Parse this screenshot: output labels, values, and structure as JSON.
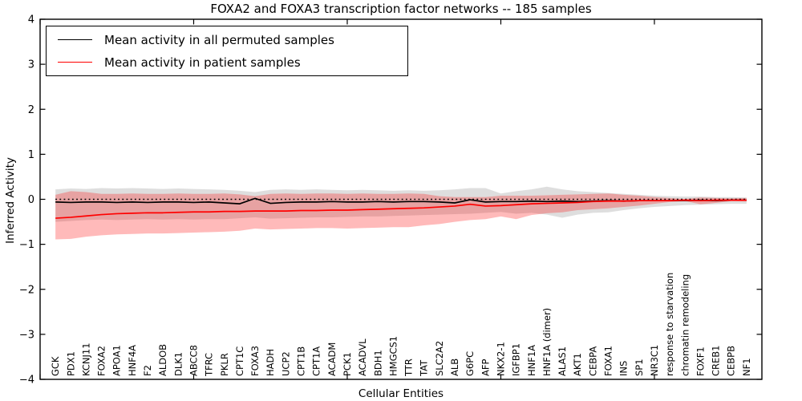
{
  "figure": {
    "title": "FOXA2 and FOXA3 transcription factor networks -- 185 samples",
    "xlabel": "Cellular Entities",
    "ylabel": "Inferred Activity"
  },
  "legend": {
    "items": [
      {
        "label": "Mean activity in all permuted samples",
        "color": "#000000"
      },
      {
        "label": "Mean activity in patient samples",
        "color": "#ff0000"
      }
    ]
  },
  "chart_data": {
    "type": "line",
    "title": "FOXA2 and FOXA3 transcription factor networks -- 185 samples",
    "xlabel": "Cellular Entities",
    "ylabel": "Inferred Activity",
    "ylim": [
      -4,
      4
    ],
    "grid": false,
    "legend_position": "upper left",
    "yticks": [
      {
        "value": 4,
        "label": "4"
      },
      {
        "value": 3,
        "label": "3"
      },
      {
        "value": 2,
        "label": "2"
      },
      {
        "value": 1,
        "label": "1"
      },
      {
        "value": 0,
        "label": "0"
      },
      {
        "value": -1,
        "label": "−1"
      },
      {
        "value": -2,
        "label": "−2"
      },
      {
        "value": -3,
        "label": "−3"
      },
      {
        "value": -4,
        "label": "−4"
      }
    ],
    "xtick_frame_positions": [
      0,
      10,
      20,
      30,
      40
    ],
    "categories": [
      "GCK",
      "PDX1",
      "KCNJ11",
      "FOXA2",
      "APOA1",
      "HNF4A",
      "F2",
      "ALDOB",
      "DLK1",
      "ABCC8",
      "TFRC",
      "PKLR",
      "CPT1C",
      "FOXA3",
      "HADH",
      "UCP2",
      "CPT1B",
      "CPT1A",
      "ACADM",
      "PCK1",
      "ACADVL",
      "BDH1",
      "HMGCS1",
      "TTR",
      "TAT",
      "SLC2A2",
      "ALB",
      "G6PC",
      "AFP",
      "NKX2-1",
      "IGFBP1",
      "HNF1A",
      "HNF1A (dimer)",
      "ALAS1",
      "AKT1",
      "CEBPA",
      "FOXA1",
      "INS",
      "SP1",
      "NR3C1",
      "response to starvation",
      "chromatin remodeling",
      "FOXF1",
      "CREB1",
      "CEBPB",
      "NF1"
    ],
    "zero_line": {
      "value": 0,
      "style": "dotted",
      "color": "#000000"
    },
    "series": [
      {
        "name": "Mean activity in all permuted samples",
        "color": "#000000",
        "values": [
          -0.06,
          -0.07,
          -0.06,
          -0.06,
          -0.07,
          -0.06,
          -0.07,
          -0.06,
          -0.06,
          -0.07,
          -0.06,
          -0.08,
          -0.1,
          0.02,
          -0.09,
          -0.07,
          -0.06,
          -0.06,
          -0.05,
          -0.06,
          -0.06,
          -0.05,
          -0.06,
          -0.05,
          -0.05,
          -0.06,
          -0.08,
          -0.01,
          -0.06,
          -0.05,
          -0.05,
          -0.04,
          -0.05,
          -0.04,
          -0.05,
          -0.04,
          -0.03,
          -0.04,
          -0.03,
          -0.03,
          -0.03,
          -0.03,
          -0.02,
          -0.03,
          -0.02,
          -0.02
        ]
      },
      {
        "name": "Mean activity in patient samples",
        "color": "#ff0000",
        "values": [
          -0.42,
          -0.4,
          -0.37,
          -0.34,
          -0.32,
          -0.31,
          -0.3,
          -0.3,
          -0.29,
          -0.28,
          -0.28,
          -0.27,
          -0.27,
          -0.26,
          -0.26,
          -0.26,
          -0.25,
          -0.25,
          -0.24,
          -0.24,
          -0.23,
          -0.22,
          -0.21,
          -0.2,
          -0.19,
          -0.17,
          -0.15,
          -0.11,
          -0.15,
          -0.14,
          -0.12,
          -0.1,
          -0.09,
          -0.08,
          -0.07,
          -0.05,
          -0.04,
          -0.04,
          -0.03,
          -0.03,
          -0.03,
          -0.02,
          -0.03,
          -0.02,
          -0.02,
          -0.02
        ]
      }
    ],
    "bands": [
      {
        "name": "permuted samples spread",
        "color": "#000000",
        "opacity": 0.13,
        "upper": [
          0.22,
          0.24,
          0.23,
          0.25,
          0.24,
          0.25,
          0.24,
          0.23,
          0.24,
          0.23,
          0.22,
          0.21,
          0.19,
          0.16,
          0.21,
          0.22,
          0.21,
          0.22,
          0.21,
          0.2,
          0.21,
          0.2,
          0.19,
          0.2,
          0.19,
          0.2,
          0.22,
          0.25,
          0.25,
          0.13,
          0.18,
          0.22,
          0.28,
          0.22,
          0.18,
          0.16,
          0.14,
          0.12,
          0.1,
          0.08,
          0.07,
          0.06,
          0.06,
          0.05,
          0.05,
          0.04
        ],
        "lower": [
          -0.5,
          -0.48,
          -0.46,
          -0.45,
          -0.46,
          -0.45,
          -0.44,
          -0.45,
          -0.44,
          -0.45,
          -0.44,
          -0.44,
          -0.42,
          -0.4,
          -0.43,
          -0.42,
          -0.41,
          -0.4,
          -0.4,
          -0.39,
          -0.38,
          -0.38,
          -0.37,
          -0.36,
          -0.35,
          -0.34,
          -0.33,
          -0.32,
          -0.3,
          -0.28,
          -0.32,
          -0.3,
          -0.34,
          -0.41,
          -0.34,
          -0.3,
          -0.29,
          -0.24,
          -0.2,
          -0.17,
          -0.15,
          -0.13,
          -0.12,
          -0.11,
          -0.1,
          -0.1
        ]
      },
      {
        "name": "patient samples spread",
        "color": "#ff0000",
        "opacity": 0.27,
        "upper": [
          0.1,
          0.18,
          0.16,
          0.12,
          0.12,
          0.13,
          0.12,
          0.12,
          0.13,
          0.12,
          0.12,
          0.13,
          0.11,
          0.07,
          0.12,
          0.13,
          0.12,
          0.13,
          0.13,
          0.12,
          0.13,
          0.12,
          0.12,
          0.13,
          0.12,
          0.07,
          0.05,
          0.05,
          0.05,
          0.08,
          0.08,
          0.08,
          0.09,
          0.1,
          0.11,
          0.12,
          0.13,
          0.1,
          0.08,
          0.05,
          0.03,
          0.01,
          0.04,
          0.03,
          0.02,
          0.03
        ],
        "lower": [
          -0.89,
          -0.88,
          -0.83,
          -0.8,
          -0.78,
          -0.77,
          -0.76,
          -0.76,
          -0.75,
          -0.74,
          -0.73,
          -0.72,
          -0.7,
          -0.65,
          -0.67,
          -0.66,
          -0.65,
          -0.64,
          -0.64,
          -0.65,
          -0.64,
          -0.63,
          -0.62,
          -0.62,
          -0.58,
          -0.55,
          -0.5,
          -0.46,
          -0.44,
          -0.38,
          -0.44,
          -0.35,
          -0.31,
          -0.29,
          -0.24,
          -0.22,
          -0.2,
          -0.17,
          -0.14,
          -0.1,
          -0.06,
          -0.04,
          -0.11,
          -0.08,
          -0.04,
          -0.05
        ]
      }
    ]
  }
}
